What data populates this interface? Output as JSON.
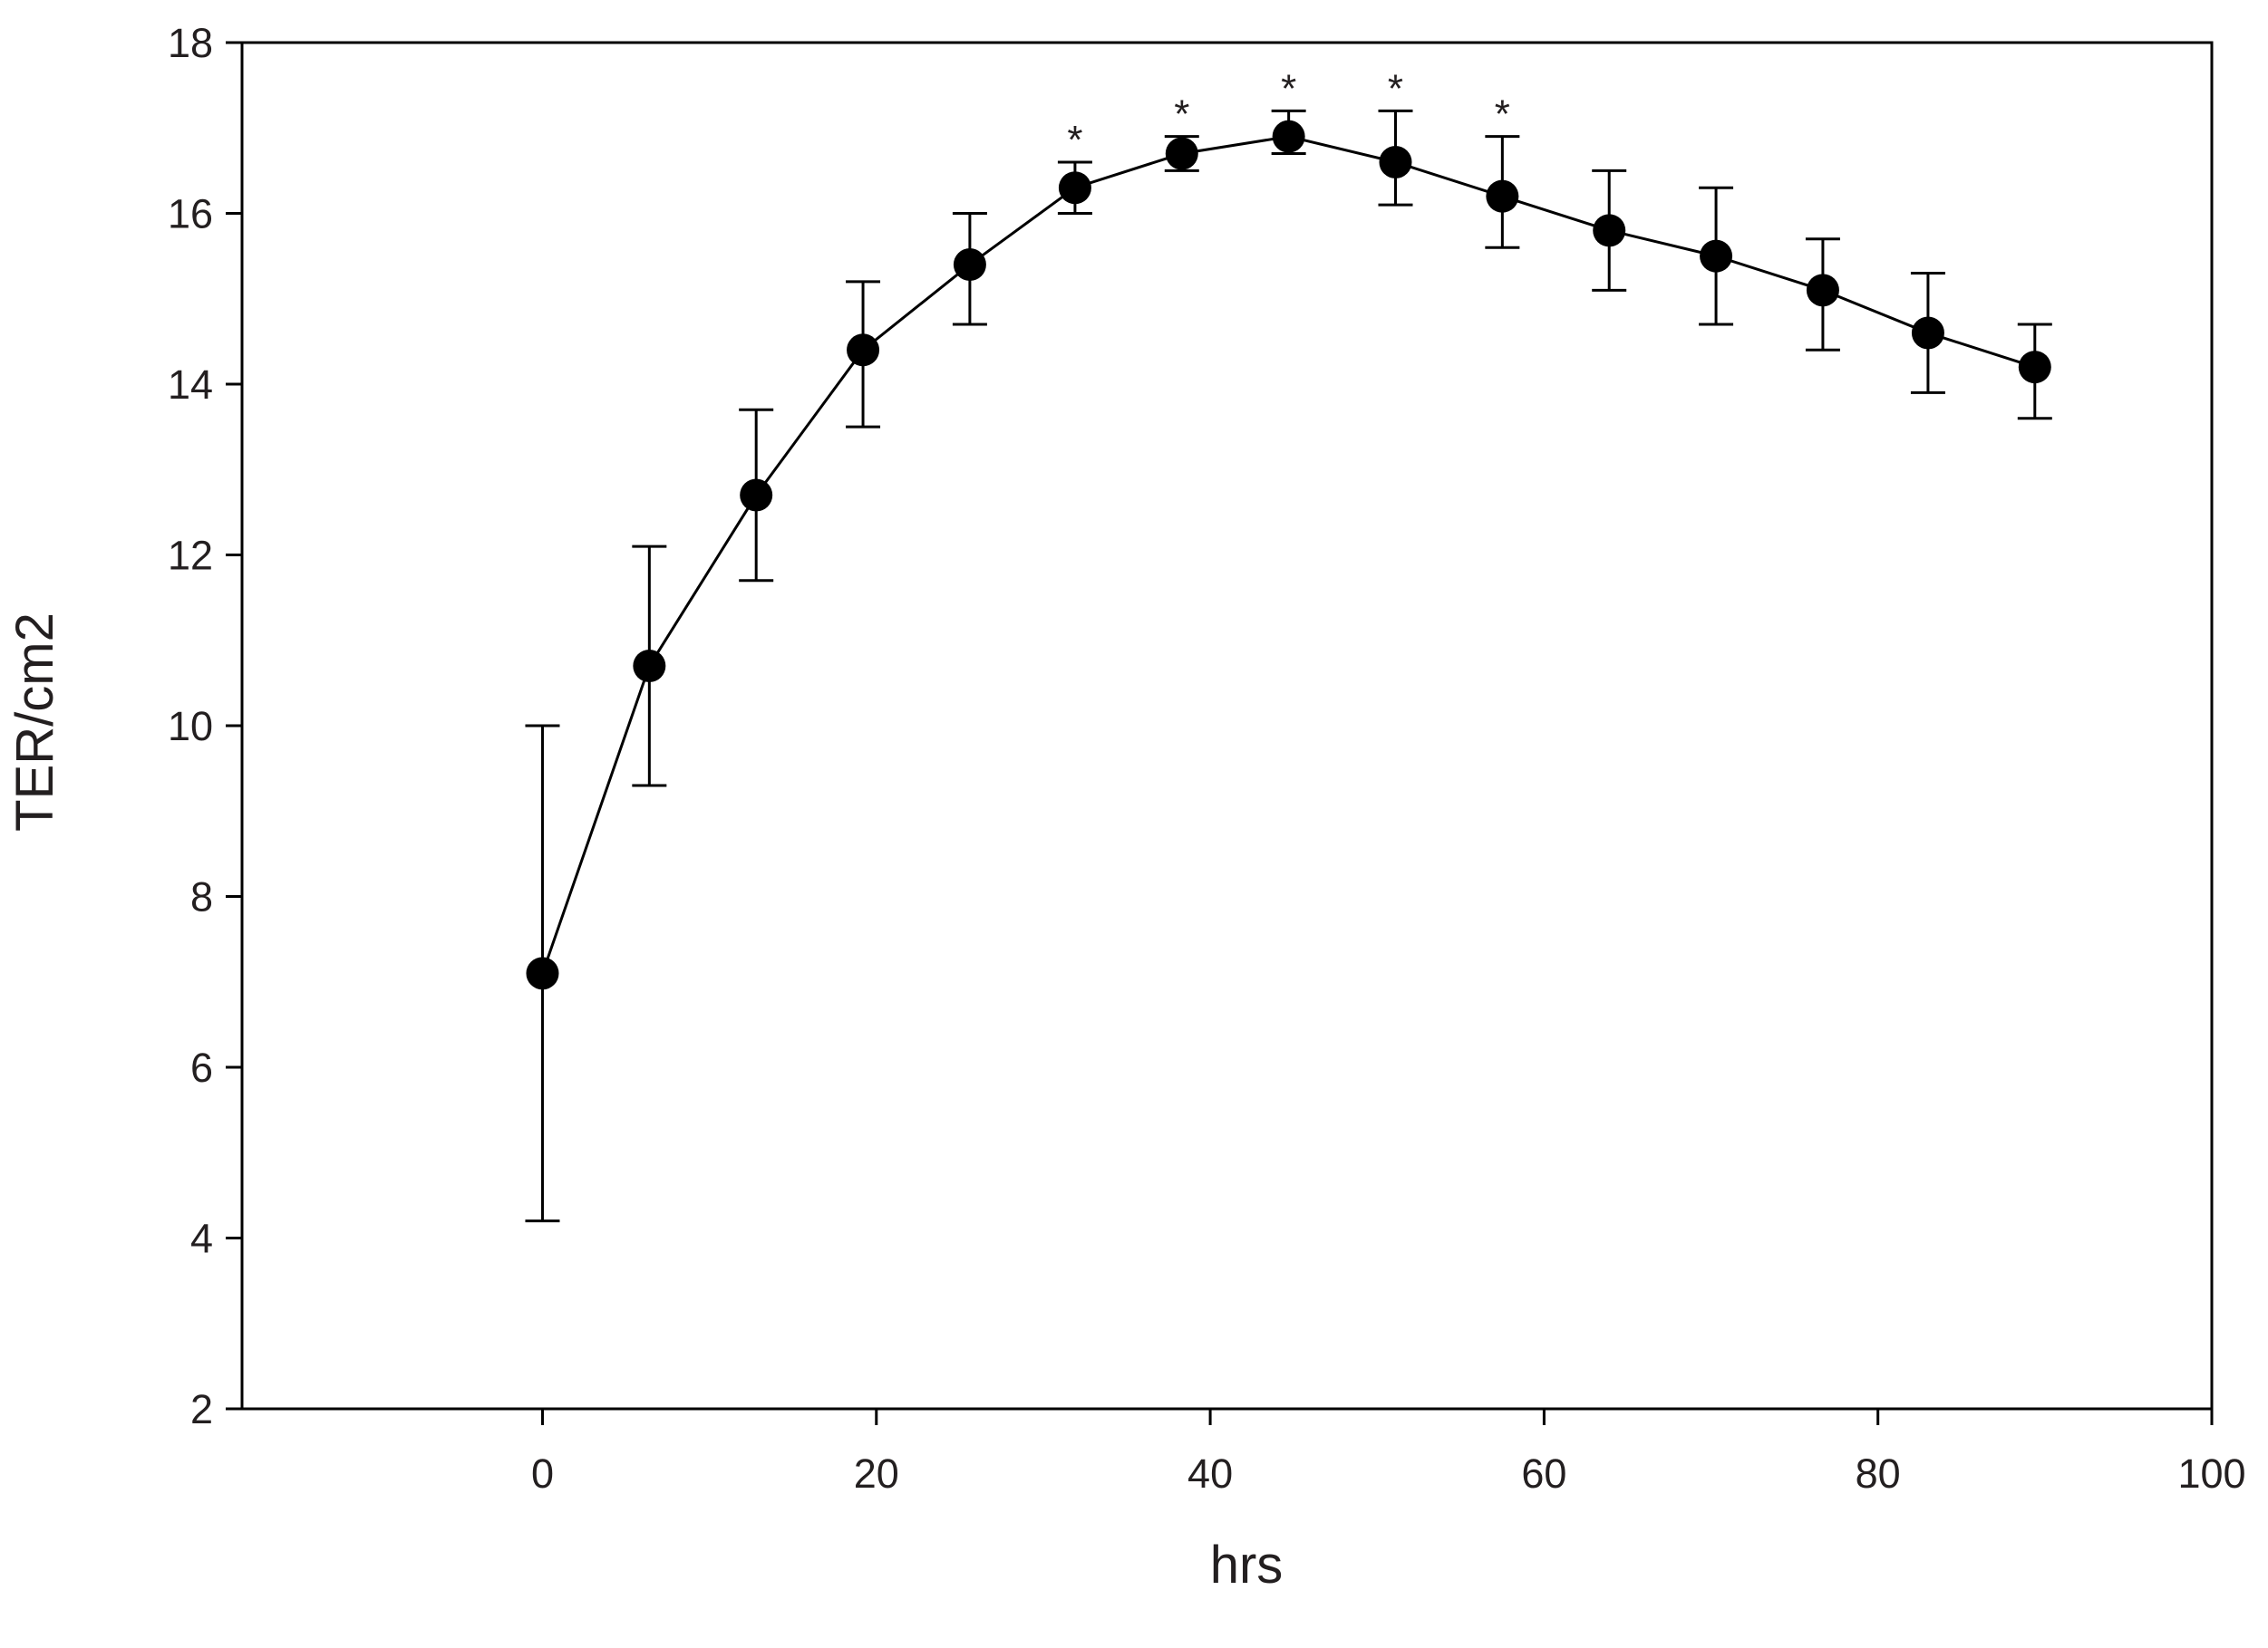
{
  "chart_data": {
    "type": "line",
    "title": "",
    "xlabel": "hrs",
    "ylabel": "TER/cm2",
    "xlim": [
      -18,
      100
    ],
    "ylim": [
      2,
      18
    ],
    "xticks": [
      0,
      20,
      40,
      60,
      80,
      100
    ],
    "yticks": [
      2,
      4,
      6,
      8,
      10,
      12,
      14,
      16,
      18
    ],
    "xtick_labels": [
      "0",
      "20",
      "40",
      "60",
      "80",
      "100"
    ],
    "ytick_labels": [
      "2",
      "4",
      "6",
      "8",
      "10",
      "12",
      "14",
      "16",
      "18"
    ],
    "grid": false,
    "legend": "none",
    "marker": "filled-circle",
    "color": "#000000",
    "series": [
      {
        "x": [
          0,
          6.4,
          12.8,
          19.2,
          25.6,
          31.9,
          38.3,
          44.7,
          51.1,
          57.5,
          63.9,
          70.3,
          76.7,
          83.0,
          89.4
        ],
        "y": [
          7.1,
          10.7,
          12.7,
          14.4,
          15.4,
          16.3,
          16.7,
          16.9,
          16.6,
          16.2,
          15.8,
          15.5,
          15.1,
          14.6,
          14.2
        ],
        "err_low": [
          4.2,
          9.3,
          11.7,
          13.5,
          14.7,
          16.0,
          16.5,
          16.7,
          16.1,
          15.6,
          15.1,
          14.7,
          14.4,
          13.9,
          13.6
        ],
        "err_high": [
          10.0,
          12.1,
          13.7,
          15.2,
          16.0,
          16.6,
          16.9,
          17.2,
          17.2,
          16.9,
          16.5,
          16.3,
          15.7,
          15.3,
          14.7
        ],
        "significant": [
          false,
          false,
          false,
          false,
          false,
          true,
          true,
          true,
          true,
          true,
          false,
          false,
          false,
          false,
          false
        ]
      }
    ],
    "significance_marker": "*"
  }
}
